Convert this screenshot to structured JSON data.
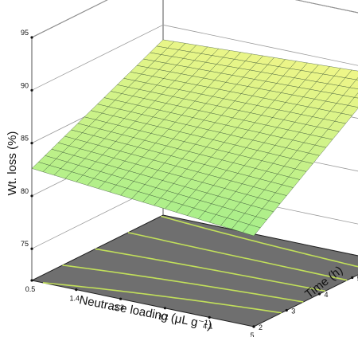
{
  "chart_data": {
    "type": "surface3d",
    "zlabel": "Wt. loss (%)",
    "xlabel": "Neutrase loading (μL g⁻¹)",
    "ylabel": "Time (h)",
    "x_ticks": [
      "0.5",
      "1.4",
      "2.3",
      "3.2",
      "4.1",
      "5"
    ],
    "y_ticks": [
      "2",
      "3",
      "4",
      "5",
      "6"
    ],
    "z_ticks": [
      "75",
      "80",
      "85",
      "90",
      "95"
    ],
    "xlim": [
      0.5,
      5
    ],
    "ylim": [
      2,
      6
    ],
    "zlim": [
      72,
      95
    ],
    "surface_corners": {
      "x0.5_y2": 82.6,
      "x5_y2": 80.6,
      "x0.5_y6": 88.6,
      "x5_y6": 89.6
    },
    "grid_cells": 20,
    "contour_levels": [
      82.5,
      84,
      85.5,
      87,
      88.5
    ],
    "colors": {
      "surface_low": "#a6ee8a",
      "surface_high": "#f0f688",
      "mesh": "#2f4a2f",
      "floor": "#6f6f6f",
      "contour": "#c2e05a",
      "box": "#555555"
    }
  }
}
